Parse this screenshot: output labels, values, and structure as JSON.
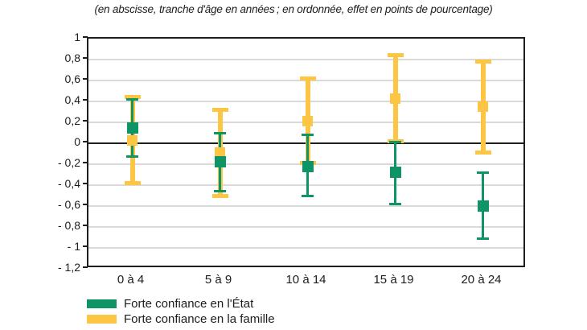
{
  "subtitle": "(en abscisse, tranche d'âge en années ; en ordonnée, effet en points de pourcentage)",
  "colors": {
    "green": "#0e9465",
    "yellow": "#fcc544",
    "grid": "#d9d9d9",
    "axis": "#1d1d1b",
    "text": "#1d1d1b",
    "background": "#ffffff"
  },
  "chart_data": {
    "type": "scatter",
    "subtype": "point-estimates-with-confidence-intervals",
    "subtitle": "(en abscisse, tranche d'âge en années ; en ordonnée, effet en points de pourcentage)",
    "categories": [
      "0 à 4",
      "5 à 9",
      "10 à 14",
      "15 à 19",
      "20 à 24"
    ],
    "xlabel": "tranche d'âge en années",
    "ylabel": "effet en points de pourcentage",
    "ylim": [
      -1.2,
      1
    ],
    "ytick_step": 0.2,
    "grid": true,
    "legend_position": "bottom-left",
    "yticks": [
      {
        "v": 1.0,
        "label": "1"
      },
      {
        "v": 0.8,
        "label": "0,8"
      },
      {
        "v": 0.6,
        "label": "0,6"
      },
      {
        "v": 0.4,
        "label": "0,4"
      },
      {
        "v": 0.2,
        "label": "0,2"
      },
      {
        "v": 0.0,
        "label": "0"
      },
      {
        "v": -0.2,
        "label": "- 0,2"
      },
      {
        "v": -0.4,
        "label": "- 0,4"
      },
      {
        "v": -0.6,
        "label": "- 0,6"
      },
      {
        "v": -0.8,
        "label": "- 0,8"
      },
      {
        "v": -1.0,
        "label": "- 1"
      },
      {
        "v": -1.2,
        "label": "- 1,2"
      }
    ],
    "series": [
      {
        "name": "Forte confiance en l'État",
        "color": "#0e9465",
        "values": [
          0.15,
          -0.18,
          -0.22,
          -0.28,
          -0.6
        ],
        "ci_upper": [
          0.42,
          0.1,
          0.08,
          0.01,
          -0.28
        ],
        "ci_lower": [
          -0.13,
          -0.46,
          -0.5,
          -0.58,
          -0.91
        ]
      },
      {
        "name": "Forte confiance en la famille",
        "color": "#fcc544",
        "values": [
          0.03,
          -0.09,
          0.21,
          0.43,
          0.35
        ],
        "ci_upper": [
          0.44,
          0.32,
          0.62,
          0.84,
          0.78
        ],
        "ci_lower": [
          -0.38,
          -0.5,
          -0.19,
          0.02,
          -0.09
        ]
      }
    ]
  }
}
